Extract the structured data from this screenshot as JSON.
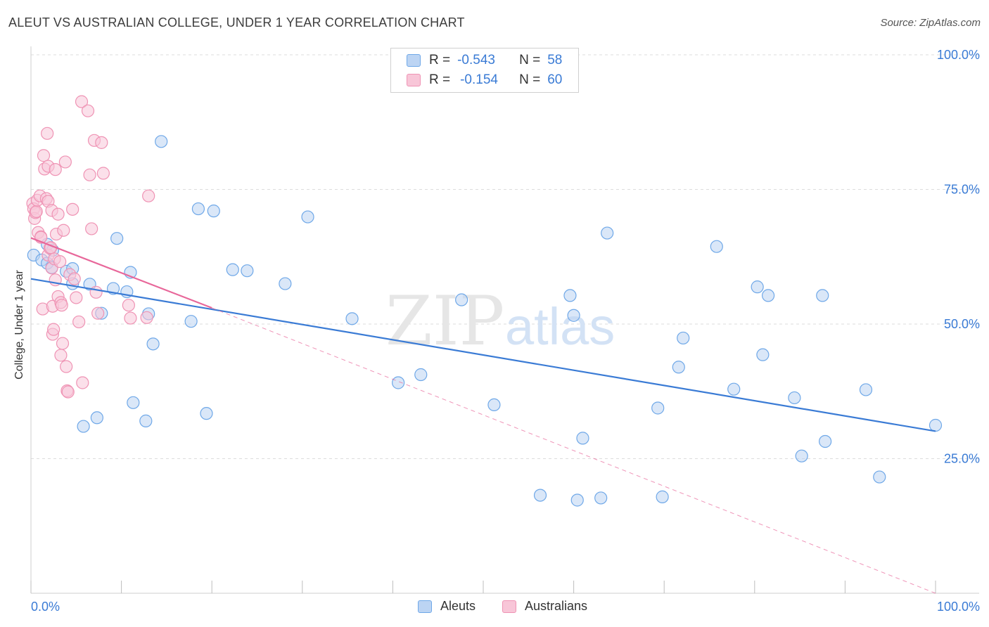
{
  "chart_data": {
    "type": "scatter",
    "title": "ALEUT VS AUSTRALIAN COLLEGE, UNDER 1 YEAR CORRELATION CHART",
    "source": "Source: ZipAtlas.com",
    "xlabel": "",
    "ylabel": "College, Under 1 year",
    "xlim": [
      0,
      100
    ],
    "ylim": [
      0,
      100
    ],
    "x_tick_labels": [
      "0.0%",
      "100.0%"
    ],
    "y_tick_labels": [
      "100.0%",
      "75.0%",
      "50.0%",
      "25.0%"
    ],
    "y_ticks": [
      100,
      75,
      50,
      25
    ],
    "grid": true,
    "watermark": "ZIPatlas",
    "series": [
      {
        "name": "Aleuts",
        "color": "#6fa8e8",
        "fill": "#bcd4f3",
        "line_color": "#3a7bd5",
        "r_label": "R =",
        "r_value": "-0.543",
        "n_label": "N =",
        "n_value": "58",
        "trend": {
          "x0": 0,
          "y0": 58.4,
          "x1": 100,
          "y1": 30.1
        },
        "x": [
          0.3,
          1.2,
          1.8,
          1.8,
          2.3,
          2.4,
          3.9,
          4.6,
          4.6,
          5.8,
          6.5,
          7.3,
          7.8,
          9.1,
          9.5,
          10.6,
          11.0,
          11.3,
          12.7,
          13.0,
          13.5,
          14.4,
          17.7,
          18.5,
          19.4,
          20.2,
          22.3,
          23.9,
          28.1,
          30.6,
          35.5,
          40.6,
          43.1,
          47.6,
          51.2,
          56.3,
          59.6,
          60.0,
          60.4,
          61.0,
          63.7,
          63.0,
          69.3,
          69.8,
          71.6,
          72.1,
          75.8,
          77.7,
          80.3,
          80.9,
          81.5,
          84.4,
          85.2,
          87.5,
          87.8,
          92.3,
          93.8,
          100.0
        ],
        "y": [
          62.8,
          61.9,
          64.8,
          61.3,
          60.5,
          63.7,
          59.8,
          57.5,
          60.3,
          31.0,
          57.4,
          32.6,
          52.0,
          56.6,
          65.9,
          56.0,
          59.6,
          35.4,
          32.0,
          51.9,
          46.3,
          83.9,
          50.5,
          71.4,
          33.4,
          71.0,
          60.1,
          59.9,
          57.5,
          69.9,
          51.0,
          39.1,
          40.6,
          54.5,
          35.0,
          18.2,
          55.3,
          51.6,
          17.3,
          28.8,
          66.9,
          17.7,
          34.4,
          17.9,
          42.0,
          47.4,
          64.4,
          37.9,
          56.9,
          44.3,
          55.3,
          36.3,
          25.5,
          55.3,
          28.2,
          37.8,
          21.6,
          31.2
        ]
      },
      {
        "name": "Australians",
        "color": "#ef93b4",
        "fill": "#f8c6d8",
        "line_color": "#e8679a",
        "r_label": "R =",
        "r_value": "-0.154",
        "n_label": "N =",
        "n_value": "60",
        "trend": {
          "x0": 0,
          "y0": 66.0,
          "x1": 20,
          "y1": 53.0
        },
        "trend_dash": {
          "x0": 20,
          "y0": 53.0,
          "x1": 100,
          "y1": 0
        },
        "x": [
          0.2,
          0.3,
          0.4,
          0.5,
          0.6,
          0.7,
          0.8,
          1.0,
          1.1,
          1.1,
          1.3,
          1.4,
          1.5,
          1.7,
          1.8,
          1.9,
          1.9,
          1.9,
          2.1,
          2.2,
          2.3,
          2.3,
          2.4,
          2.4,
          2.5,
          2.6,
          2.7,
          2.7,
          2.8,
          3.0,
          3.0,
          3.2,
          3.3,
          3.3,
          3.4,
          3.5,
          3.6,
          3.8,
          3.9,
          4.0,
          4.1,
          4.3,
          4.6,
          4.8,
          5.0,
          5.3,
          5.6,
          5.7,
          6.3,
          6.5,
          6.7,
          7.0,
          7.2,
          7.4,
          7.8,
          8.0,
          10.8,
          11.0,
          12.8,
          13.0
        ],
        "y": [
          72.4,
          71.4,
          69.6,
          70.7,
          70.9,
          73.0,
          67.0,
          73.8,
          66.2,
          66.1,
          52.8,
          81.3,
          78.8,
          73.3,
          85.4,
          79.3,
          62.8,
          72.8,
          64.1,
          64.2,
          71.1,
          60.4,
          53.3,
          48.1,
          49.0,
          62.1,
          78.7,
          58.2,
          66.7,
          70.4,
          55.1,
          61.6,
          54.0,
          44.2,
          53.5,
          46.4,
          67.4,
          80.1,
          42.1,
          37.6,
          37.4,
          59.2,
          71.3,
          58.4,
          54.9,
          50.4,
          91.3,
          39.1,
          89.6,
          77.7,
          67.7,
          84.1,
          55.9,
          52.0,
          83.7,
          78.0,
          53.5,
          51.1,
          51.2,
          73.8
        ]
      }
    ]
  },
  "legend": {
    "aleuts_label": "Aleuts",
    "australians_label": "Australians"
  }
}
